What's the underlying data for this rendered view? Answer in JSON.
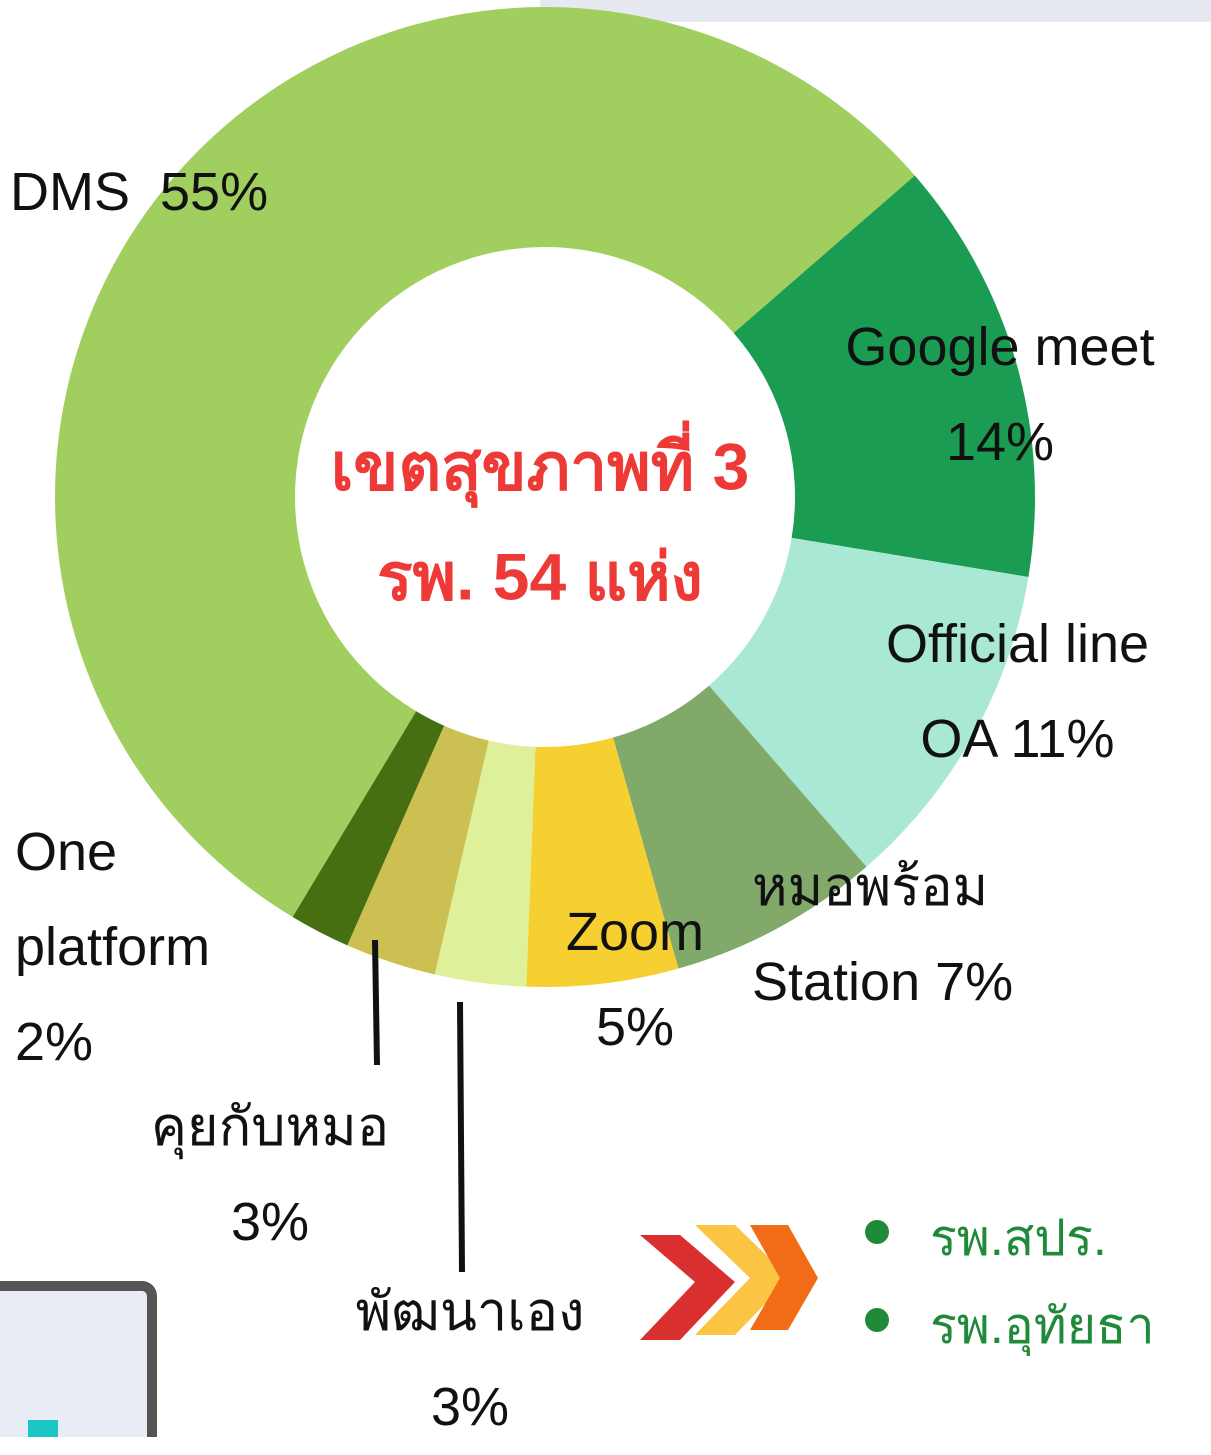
{
  "chart_data": {
    "type": "pie",
    "center_text": [
      "เขตสุขภาพที่ 3",
      "รพ. 54 แห่ง"
    ],
    "categories": [
      "DMS",
      "Google meet",
      "Official line OA",
      "หมอพร้อม Station",
      "Zoom",
      "พัฒนาเอง",
      "คุยกับหมอ",
      "One platform"
    ],
    "values": [
      55,
      14,
      11,
      7,
      5,
      3,
      3,
      2
    ],
    "value_labels": [
      "55%",
      "14%",
      "11%",
      "7%",
      "5%",
      "3%",
      "3%",
      "2%"
    ],
    "colors": [
      "#a1cf5f",
      "#1a9c52",
      "#a8e8d4",
      "#80a96a",
      "#f6cf30",
      "#dff09b",
      "#cdc052",
      "#466f12"
    ]
  },
  "side_list": [
    "รพ.สปร.",
    "รพ.อุทัยธา"
  ]
}
